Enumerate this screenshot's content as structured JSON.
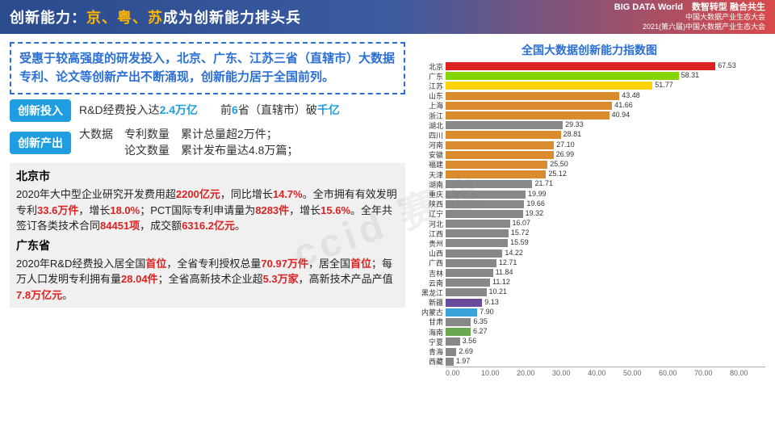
{
  "header": {
    "title_pre": "创新能力：",
    "title_hl": "京、粤、苏",
    "title_post": "成为创新能力排头兵",
    "logo": "BIG DATA World",
    "logo_sub": "中国大数据产业生态大会",
    "slogan1": "数智转型 融合共生",
    "slogan2": "2021(第六届)中国大数据产业生态大会"
  },
  "summary": "受惠于较高强度的研发投入，北京、广东、江苏三省（直辖市）大数据专利、论文等创新产出不断涌现，创新能力居于全国前列。",
  "input_row": {
    "badge": "创新投入",
    "t1": "R&D经费投入达",
    "v1": "2.4万亿",
    "t2": "　　前",
    "v2": "6",
    "t3": "省（直辖市）破",
    "v3": "千亿"
  },
  "output_row": {
    "badge": "创新产出",
    "t1": "大数据",
    "line1a": "专利数量",
    "line1b": "论文数量",
    "line2a": "累计总量超2万件；",
    "line2b": "累计发布量达4.8万篇；"
  },
  "beijing": {
    "name": "北京市",
    "p": "2020年大中型企业研究开发费用超<hl>2200亿元</hl>，同比增长<hl>14.7%</hl>。全市拥有有效发明专利<hl>33.6万件</hl>，增长<hl>18.0%</hl>；PCT国际专利申请量为<hl>8283件</hl>，增长<hl>15.6%</hl>。全年共签订各类技术合同<hl>84451项</hl>，成交额<hl>6316.2亿元</hl>。"
  },
  "guangdong": {
    "name": "广东省",
    "p": "2020年R&D经费投入居全国<hl>首位</hl>，全省专利授权总量<hl>70.97万件</hl>，居全国<hl>首位</hl>；每万人口发明专利拥有量<hl>28.04件</hl>；全省高新技术企业超<hl>5.3万家</hl>，高新技术产品产值<hl>7.8万亿元</hl>。"
  },
  "chart": {
    "title": "全国大数据创新能力指数图",
    "xmax": 80,
    "xticks": [
      "0.00",
      "10.00",
      "20.00",
      "30.00",
      "40.00",
      "50.00",
      "60.00",
      "70.00",
      "80.00"
    ],
    "bars": [
      {
        "label": "北京",
        "value": 67.53,
        "color": "#d22"
      },
      {
        "label": "广东",
        "value": 58.31,
        "color": "#85d400"
      },
      {
        "label": "江苏",
        "value": 51.77,
        "color": "#ffd400"
      },
      {
        "label": "山东",
        "value": 43.48,
        "color": "#d98b2e"
      },
      {
        "label": "上海",
        "value": 41.66,
        "color": "#d98b2e"
      },
      {
        "label": "浙江",
        "value": 40.94,
        "color": "#d98b2e"
      },
      {
        "label": "湖北",
        "value": 29.33,
        "color": "#888"
      },
      {
        "label": "四川",
        "value": 28.81,
        "color": "#d98b2e"
      },
      {
        "label": "河南",
        "value": 27.1,
        "color": "#d98b2e"
      },
      {
        "label": "安徽",
        "value": 26.99,
        "color": "#d98b2e"
      },
      {
        "label": "福建",
        "value": 25.5,
        "color": "#d98b2e"
      },
      {
        "label": "天津",
        "value": 25.12,
        "color": "#d98b2e"
      },
      {
        "label": "湖南",
        "value": 21.71,
        "color": "#888"
      },
      {
        "label": "重庆",
        "value": 19.99,
        "color": "#888"
      },
      {
        "label": "陕西",
        "value": 19.66,
        "color": "#888"
      },
      {
        "label": "辽宁",
        "value": 19.32,
        "color": "#888"
      },
      {
        "label": "河北",
        "value": 16.07,
        "color": "#888"
      },
      {
        "label": "江西",
        "value": 15.72,
        "color": "#888"
      },
      {
        "label": "贵州",
        "value": 15.59,
        "color": "#888"
      },
      {
        "label": "山西",
        "value": 14.22,
        "color": "#888"
      },
      {
        "label": "广西",
        "value": 12.71,
        "color": "#888"
      },
      {
        "label": "吉林",
        "value": 11.84,
        "color": "#888"
      },
      {
        "label": "云南",
        "value": 11.12,
        "color": "#888"
      },
      {
        "label": "黑龙江",
        "value": 10.21,
        "color": "#888"
      },
      {
        "label": "新疆",
        "value": 9.13,
        "color": "#6a4a9a"
      },
      {
        "label": "内蒙古",
        "value": 7.9,
        "color": "#3aa3d8"
      },
      {
        "label": "甘肃",
        "value": 6.35,
        "color": "#888"
      },
      {
        "label": "海南",
        "value": 6.27,
        "color": "#6aa84f"
      },
      {
        "label": "宁夏",
        "value": 3.56,
        "color": "#888"
      },
      {
        "label": "青海",
        "value": 2.69,
        "color": "#888"
      },
      {
        "label": "西藏",
        "value": 1.97,
        "color": "#888"
      }
    ]
  },
  "watermark": "ccid 赛迪"
}
